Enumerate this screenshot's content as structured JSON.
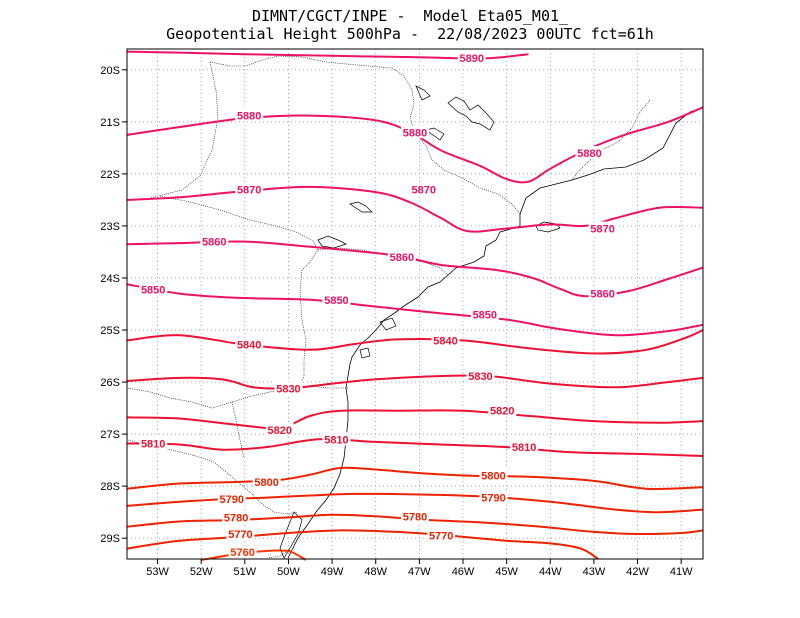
{
  "title": {
    "line1": "DIMNT/CGCT/INPE -  Model Eta05_M01_",
    "line2": "Geopotential Height 500hPa -  22/08/2023 00UTC fct=61h"
  },
  "map": {
    "lon_range": [
      -53.7,
      -40.5
    ],
    "lat_range": [
      -29.4,
      -19.6
    ],
    "units": "gpm"
  },
  "axes": {
    "x_ticks": [
      "53W",
      "52W",
      "51W",
      "50W",
      "49W",
      "48W",
      "47W",
      "46W",
      "45W",
      "44W",
      "43W",
      "42W",
      "41W"
    ],
    "y_ticks": [
      "20S",
      "21S",
      "22S",
      "23S",
      "24S",
      "25S",
      "26S",
      "27S",
      "28S",
      "29S"
    ]
  },
  "colors": {
    "high": "#ee1166",
    "mid": "#ee1133",
    "low": "#ee2200",
    "lowest": "#ff3300",
    "coast": "#000000",
    "grid": "#888888"
  },
  "contours": [
    {
      "value": 5890,
      "label": "5890",
      "color": "#ee1166",
      "pts": [
        [
          -53.7,
          -19.65
        ],
        [
          -52.5,
          -19.67
        ],
        [
          -51,
          -19.7
        ],
        [
          -49,
          -19.73
        ],
        [
          -47,
          -19.76
        ],
        [
          -45.5,
          -19.78
        ],
        [
          -44.5,
          -19.7
        ]
      ],
      "labels": [
        [
          -45.8,
          -19.77
        ]
      ]
    },
    {
      "value": 5880,
      "label": "5880",
      "color": "#ee1166",
      "pts": [
        [
          -53.7,
          -21.25
        ],
        [
          -52.5,
          -21.1
        ],
        [
          -51,
          -20.93
        ],
        [
          -49.5,
          -20.88
        ],
        [
          -48,
          -20.97
        ],
        [
          -47.2,
          -21.2
        ],
        [
          -46.5,
          -21.55
        ],
        [
          -45.6,
          -21.85
        ],
        [
          -45,
          -22.1
        ],
        [
          -44.5,
          -22.15
        ],
        [
          -44,
          -21.9
        ],
        [
          -43.2,
          -21.55
        ],
        [
          -42.3,
          -21.25
        ],
        [
          -41.3,
          -21
        ],
        [
          -40.5,
          -20.72
        ]
      ],
      "labels": [
        [
          -50.9,
          -20.88
        ],
        [
          -47.1,
          -21.2
        ],
        [
          -43.1,
          -21.6
        ]
      ]
    },
    {
      "value": 5870,
      "label": "5870",
      "color": "#ee1166",
      "pts": [
        [
          -53.7,
          -22.5
        ],
        [
          -52.5,
          -22.45
        ],
        [
          -51,
          -22.33
        ],
        [
          -49.5,
          -22.25
        ],
        [
          -48,
          -22.35
        ],
        [
          -47.2,
          -22.55
        ],
        [
          -46.5,
          -22.85
        ],
        [
          -45.9,
          -23.1
        ],
        [
          -45,
          -23.05
        ],
        [
          -44,
          -22.97
        ],
        [
          -43.2,
          -23
        ],
        [
          -42.5,
          -22.85
        ],
        [
          -41.5,
          -22.65
        ],
        [
          -40.5,
          -22.65
        ]
      ],
      "labels": [
        [
          -50.9,
          -22.3
        ],
        [
          -46.9,
          -22.3
        ],
        [
          -42.8,
          -23.05
        ]
      ]
    },
    {
      "value": 5860,
      "label": "5860",
      "color": "#ee1166",
      "pts": [
        [
          -53.7,
          -23.35
        ],
        [
          -52.5,
          -23.33
        ],
        [
          -51,
          -23.3
        ],
        [
          -49.5,
          -23.4
        ],
        [
          -48,
          -23.52
        ],
        [
          -47.3,
          -23.6
        ],
        [
          -46.5,
          -23.75
        ],
        [
          -45.2,
          -23.85
        ],
        [
          -44.4,
          -24
        ],
        [
          -43.8,
          -24.2
        ],
        [
          -43.2,
          -24.35
        ],
        [
          -42.2,
          -24.25
        ],
        [
          -41.3,
          -24.02
        ],
        [
          -40.5,
          -23.8
        ]
      ],
      "labels": [
        [
          -51.7,
          -23.3
        ],
        [
          -47.4,
          -23.6
        ],
        [
          -42.8,
          -24.3
        ]
      ]
    },
    {
      "value": 5850,
      "label": "5850",
      "color": "#ee1166",
      "pts": [
        [
          -53.7,
          -24.12
        ],
        [
          -52.5,
          -24.3
        ],
        [
          -51.2,
          -24.38
        ],
        [
          -49.5,
          -24.42
        ],
        [
          -48,
          -24.55
        ],
        [
          -46.5,
          -24.68
        ],
        [
          -45,
          -24.8
        ],
        [
          -43.8,
          -24.98
        ],
        [
          -42.5,
          -25.1
        ],
        [
          -41.3,
          -25.02
        ],
        [
          -40.5,
          -24.9
        ]
      ],
      "labels": [
        [
          -53.1,
          -24.22
        ],
        [
          -48.9,
          -24.42
        ],
        [
          -45.5,
          -24.7
        ]
      ]
    },
    {
      "value": 5840,
      "label": "5840",
      "color": "#ee1133",
      "pts": [
        [
          -53.7,
          -25.2
        ],
        [
          -52.5,
          -25.1
        ],
        [
          -51,
          -25.28
        ],
        [
          -49.5,
          -25.38
        ],
        [
          -48.5,
          -25.27
        ],
        [
          -47.5,
          -25.18
        ],
        [
          -46,
          -25.2
        ],
        [
          -44.5,
          -25.35
        ],
        [
          -43,
          -25.45
        ],
        [
          -41.8,
          -25.38
        ],
        [
          -40.9,
          -25.15
        ],
        [
          -40.5,
          -25.0
        ]
      ],
      "labels": [
        [
          -50.9,
          -25.28
        ],
        [
          -46.4,
          -25.2
        ]
      ]
    },
    {
      "value": 5830,
      "label": "5830",
      "color": "#ee1133",
      "pts": [
        [
          -53.7,
          -25.98
        ],
        [
          -52.5,
          -25.92
        ],
        [
          -51.5,
          -25.95
        ],
        [
          -50.8,
          -26.1
        ],
        [
          -50,
          -26.12
        ],
        [
          -49.2,
          -26.05
        ],
        [
          -48.2,
          -25.96
        ],
        [
          -47,
          -25.9
        ],
        [
          -45.5,
          -25.88
        ],
        [
          -44,
          -26.03
        ],
        [
          -42.5,
          -26.1
        ],
        [
          -41.3,
          -26.0
        ],
        [
          -40.5,
          -25.92
        ]
      ],
      "labels": [
        [
          -50.0,
          -26.12
        ],
        [
          -45.6,
          -25.88
        ]
      ]
    },
    {
      "value": 5820,
      "label": "5820",
      "color": "#ee1133",
      "pts": [
        [
          -53.7,
          -26.68
        ],
        [
          -52.5,
          -26.7
        ],
        [
          -51.2,
          -26.82
        ],
        [
          -50.2,
          -26.88
        ],
        [
          -49.5,
          -26.65
        ],
        [
          -48.8,
          -26.55
        ],
        [
          -47.5,
          -26.55
        ],
        [
          -46,
          -26.55
        ],
        [
          -44.5,
          -26.65
        ],
        [
          -43,
          -26.75
        ],
        [
          -41.5,
          -26.78
        ],
        [
          -40.5,
          -26.75
        ]
      ],
      "labels": [
        [
          -50.2,
          -26.92
        ],
        [
          -45.1,
          -26.55
        ]
      ]
    },
    {
      "value": 5810,
      "label": "5810",
      "color": "#ee1133",
      "pts": [
        [
          -53.7,
          -27.18
        ],
        [
          -52.5,
          -27.2
        ],
        [
          -51.5,
          -27.3
        ],
        [
          -50.5,
          -27.25
        ],
        [
          -49.3,
          -27.1
        ],
        [
          -48,
          -27.15
        ],
        [
          -46.5,
          -27.2
        ],
        [
          -45,
          -27.25
        ],
        [
          -43.5,
          -27.35
        ],
        [
          -42,
          -27.38
        ],
        [
          -40.5,
          -27.42
        ]
      ],
      "labels": [
        [
          -53.1,
          -27.18
        ],
        [
          -48.9,
          -27.1
        ],
        [
          -44.6,
          -27.25
        ]
      ]
    },
    {
      "value": 5800,
      "label": "5800",
      "color": "#ee2200",
      "pts": [
        [
          -53.7,
          -28.05
        ],
        [
          -52.5,
          -27.95
        ],
        [
          -51.2,
          -27.92
        ],
        [
          -50.2,
          -27.88
        ],
        [
          -49.5,
          -27.78
        ],
        [
          -48.8,
          -27.65
        ],
        [
          -48,
          -27.68
        ],
        [
          -47,
          -27.75
        ],
        [
          -45.8,
          -27.8
        ],
        [
          -44.5,
          -27.82
        ],
        [
          -43,
          -27.9
        ],
        [
          -41.8,
          -28.05
        ],
        [
          -40.5,
          -28.02
        ]
      ],
      "labels": [
        [
          -50.5,
          -27.92
        ],
        [
          -45.3,
          -27.8
        ]
      ]
    },
    {
      "value": 5790,
      "label": "5790",
      "color": "#ee2200",
      "pts": [
        [
          -53.7,
          -28.38
        ],
        [
          -52.5,
          -28.3
        ],
        [
          -51.5,
          -28.25
        ],
        [
          -50.5,
          -28.22
        ],
        [
          -49.5,
          -28.18
        ],
        [
          -48.5,
          -28.15
        ],
        [
          -47,
          -28.16
        ],
        [
          -45.5,
          -28.2
        ],
        [
          -44,
          -28.3
        ],
        [
          -42.5,
          -28.45
        ],
        [
          -41.5,
          -28.5
        ],
        [
          -40.5,
          -28.45
        ]
      ],
      "labels": [
        [
          -51.3,
          -28.25
        ],
        [
          -45.3,
          -28.22
        ]
      ]
    },
    {
      "value": 5780,
      "label": "5780",
      "color": "#ee2200",
      "pts": [
        [
          -53.7,
          -28.78
        ],
        [
          -52.5,
          -28.68
        ],
        [
          -51.2,
          -28.65
        ],
        [
          -50,
          -28.6
        ],
        [
          -49,
          -28.55
        ],
        [
          -48,
          -28.58
        ],
        [
          -46.8,
          -28.65
        ],
        [
          -45.5,
          -28.7
        ],
        [
          -44.2,
          -28.78
        ],
        [
          -43,
          -28.88
        ],
        [
          -42,
          -28.92
        ],
        [
          -41,
          -28.9
        ],
        [
          -40.5,
          -28.85
        ]
      ],
      "labels": [
        [
          -51.2,
          -28.6
        ],
        [
          -47.1,
          -28.58
        ]
      ]
    },
    {
      "value": 5770,
      "label": "5770",
      "color": "#ee2200",
      "pts": [
        [
          -53.7,
          -29.2
        ],
        [
          -52.5,
          -29.05
        ],
        [
          -51.2,
          -28.98
        ],
        [
          -50,
          -28.9
        ],
        [
          -48.8,
          -28.85
        ],
        [
          -47.5,
          -28.88
        ],
        [
          -46.3,
          -28.95
        ],
        [
          -45,
          -29.05
        ],
        [
          -44,
          -29.1
        ],
        [
          -43.3,
          -29.2
        ],
        [
          -42.9,
          -29.4
        ]
      ],
      "labels": [
        [
          -51.1,
          -28.92
        ],
        [
          -46.5,
          -28.95
        ]
      ]
    },
    {
      "value": 5760,
      "label": "5760",
      "color": "#ff3300",
      "pts": [
        [
          -52.0,
          -29.42
        ],
        [
          -51.3,
          -29.32
        ],
        [
          -50.6,
          -29.25
        ],
        [
          -50.0,
          -29.25
        ],
        [
          -49.6,
          -29.42
        ]
      ],
      "labels": [
        [
          -51.05,
          -29.27
        ]
      ]
    }
  ]
}
